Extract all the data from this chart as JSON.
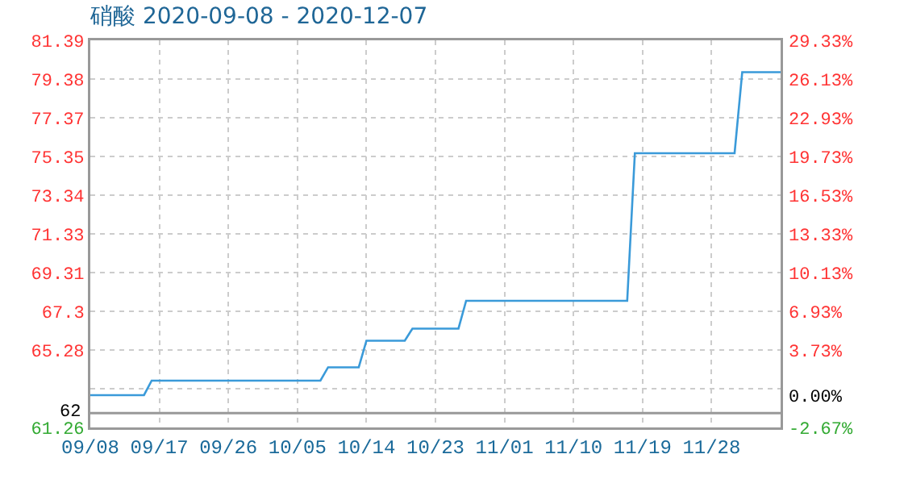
{
  "chart_data": {
    "type": "line",
    "title": "硝酸 2020-09-08 - 2020-12-07",
    "x": [
      "2020-09-08",
      "2020-09-15",
      "2020-09-16",
      "2020-10-08",
      "2020-10-09",
      "2020-10-13",
      "2020-10-14",
      "2020-10-19",
      "2020-10-20",
      "2020-10-26",
      "2020-10-27",
      "2020-11-17",
      "2020-11-18",
      "2020-12-01",
      "2020-12-02",
      "2020-12-07"
    ],
    "series": [
      {
        "color": "#3a9ad9",
        "axis": "y2",
        "values": [
          0,
          0,
          1.2,
          1.2,
          2.3,
          2.3,
          4.5,
          4.5,
          5.5,
          5.5,
          7.8,
          7.8,
          20,
          20,
          26.7,
          26.7
        ]
      }
    ],
    "xlim": [
      "2020-09-08",
      "2020-12-07"
    ],
    "xticks": [
      {
        "value": "2020-09-08",
        "label": "09/08"
      },
      {
        "value": "2020-09-17",
        "label": "09/17"
      },
      {
        "value": "2020-09-26",
        "label": "09/26"
      },
      {
        "value": "2020-10-05",
        "label": "10/05"
      },
      {
        "value": "2020-10-14",
        "label": "10/14"
      },
      {
        "value": "2020-10-23",
        "label": "10/23"
      },
      {
        "value": "2020-11-01",
        "label": "11/01"
      },
      {
        "value": "2020-11-10",
        "label": "11/10"
      },
      {
        "value": "2020-11-19",
        "label": "11/19"
      },
      {
        "value": "2020-11-28",
        "label": "11/28"
      }
    ],
    "ylim": [
      61.26,
      81.39
    ],
    "yticks": [
      61.26,
      {
        "value": 63.27,
        "label": null
      },
      65.28,
      67.3,
      69.31,
      71.33,
      73.34,
      75.35,
      77.37,
      79.38,
      81.39
    ],
    "y2lim": [
      -2.67,
      29.33
    ],
    "y2ticks": [
      {
        "value": -2.67,
        "label": "-2.67%"
      },
      {
        "value": 0,
        "label": "0.00%"
      },
      {
        "value": 3.73,
        "label": "3.73%"
      },
      {
        "value": 6.93,
        "label": "6.93%"
      },
      {
        "value": 10.13,
        "label": "10.13%"
      },
      {
        "value": 13.33,
        "label": "13.33%"
      },
      {
        "value": 16.53,
        "label": "16.53%"
      },
      {
        "value": 19.73,
        "label": "19.73%"
      },
      {
        "value": 22.93,
        "label": "22.93%"
      },
      {
        "value": 26.13,
        "label": "26.13%"
      },
      {
        "value": 29.33,
        "label": "29.33%"
      }
    ],
    "ref_lines": [
      {
        "axis": "y",
        "value": 62,
        "label": "62",
        "color": "#999999"
      }
    ],
    "grid": true,
    "marker": "none",
    "line_style": "solid"
  }
}
